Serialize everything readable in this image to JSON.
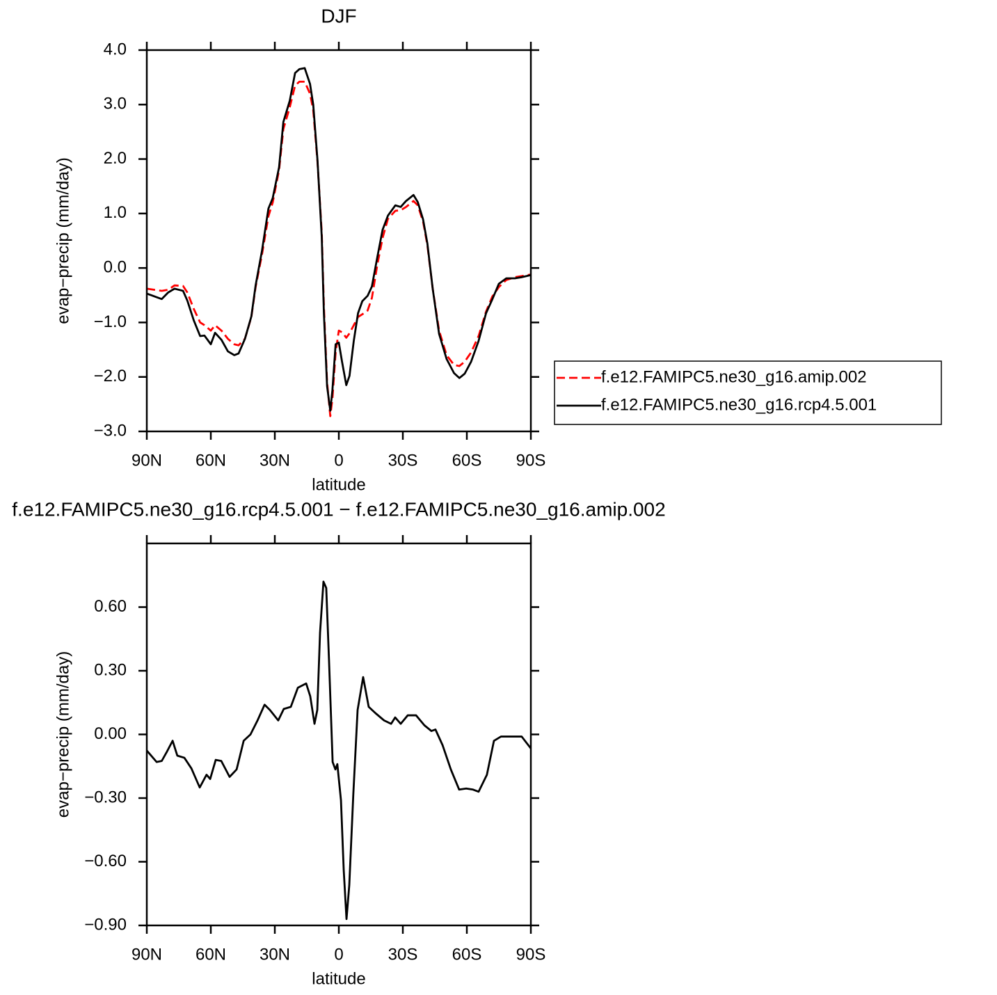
{
  "chart_data": [
    {
      "type": "line",
      "title": "DJF",
      "xlabel": "latitude",
      "ylabel": "evap−precip (mm/day)",
      "xlim": [
        90,
        -90
      ],
      "ylim": [
        -3,
        4
      ],
      "xticks": [
        {
          "value": 90,
          "label": "90N"
        },
        {
          "value": 60,
          "label": "60N"
        },
        {
          "value": 30,
          "label": "30N"
        },
        0,
        {
          "value": -30,
          "label": "30S"
        },
        {
          "value": -60,
          "label": "60S"
        },
        {
          "value": -90,
          "label": "90S"
        }
      ],
      "yticks": [
        {
          "value": 4,
          "label": "4.0"
        },
        {
          "value": 3,
          "label": "3.0"
        },
        {
          "value": 2,
          "label": "2.0"
        },
        {
          "value": 1,
          "label": "1.0"
        },
        {
          "value": 0,
          "label": "0.0"
        },
        {
          "value": -1,
          "label": "−1.0"
        },
        {
          "value": -2,
          "label": "−2.0"
        },
        {
          "value": -3,
          "label": "−3.0"
        }
      ],
      "legend": "right",
      "x": [
        90,
        83,
        80,
        77,
        73,
        71,
        68,
        65,
        63,
        60,
        58,
        55,
        52,
        49,
        47,
        44,
        41,
        39,
        36,
        33,
        31,
        28,
        26,
        23,
        20.5,
        18.5,
        16,
        13.5,
        12,
        10,
        8,
        7,
        5.5,
        4,
        3,
        1.5,
        0,
        -1.5,
        -3.5,
        -5,
        -7,
        -9,
        -11,
        -13.5,
        -15.5,
        -18,
        -20.5,
        -23,
        -26.5,
        -29,
        -31.5,
        -35,
        -37,
        -39.5,
        -41.5,
        -44,
        -47,
        -50.5,
        -54,
        -56.5,
        -59,
        -62,
        -65.5,
        -69,
        -72,
        -75,
        -78.5,
        -82.5,
        -85.5,
        -90
      ],
      "series": [
        {
          "name": "f.e12.FAMIPC5.ne30_g16.amip.002",
          "color": "#ff0000",
          "style": "dashed",
          "values": [
            -0.38,
            -0.42,
            -0.4,
            -0.32,
            -0.33,
            -0.45,
            -0.75,
            -1.0,
            -1.05,
            -1.15,
            -1.05,
            -1.15,
            -1.3,
            -1.4,
            -1.42,
            -1.3,
            -0.9,
            -0.35,
            0.25,
            0.95,
            1.2,
            1.8,
            2.55,
            2.95,
            3.35,
            3.42,
            3.42,
            3.2,
            2.9,
            1.95,
            0.65,
            -0.7,
            -2.1,
            -2.72,
            -2.4,
            -1.55,
            -1.15,
            -1.18,
            -1.28,
            -1.2,
            -1.05,
            -0.9,
            -0.85,
            -0.78,
            -0.55,
            0.05,
            0.55,
            0.9,
            1.05,
            1.06,
            1.12,
            1.23,
            1.15,
            0.85,
            0.42,
            -0.38,
            -1.15,
            -1.6,
            -1.78,
            -1.8,
            -1.72,
            -1.55,
            -1.25,
            -0.8,
            -0.52,
            -0.35,
            -0.22,
            -0.17,
            -0.15,
            -0.12
          ]
        },
        {
          "name": "f.e12.FAMIPC5.ne30_g16.rcp4.5.001",
          "color": "#000000",
          "style": "solid",
          "values": [
            -0.47,
            -0.57,
            -0.45,
            -0.38,
            -0.42,
            -0.6,
            -0.96,
            -1.25,
            -1.24,
            -1.4,
            -1.19,
            -1.32,
            -1.53,
            -1.6,
            -1.57,
            -1.3,
            -0.89,
            -0.32,
            0.32,
            1.09,
            1.28,
            1.85,
            2.68,
            3.07,
            3.58,
            3.65,
            3.67,
            3.38,
            3.0,
            1.98,
            0.57,
            -0.83,
            -2.17,
            -2.62,
            -2.24,
            -1.4,
            -1.37,
            -1.72,
            -2.15,
            -1.98,
            -1.34,
            -0.83,
            -0.61,
            -0.51,
            -0.34,
            0.19,
            0.7,
            0.96,
            1.15,
            1.12,
            1.23,
            1.34,
            1.21,
            0.89,
            0.45,
            -0.38,
            -1.21,
            -1.67,
            -1.93,
            -2.02,
            -1.94,
            -1.72,
            -1.34,
            -0.83,
            -0.57,
            -0.29,
            -0.19,
            -0.19,
            -0.17,
            -0.13
          ]
        }
      ]
    },
    {
      "type": "line",
      "title": "f.e12.FAMIPC5.ne30_g16.rcp4.5.001 − f.e12.FAMIPC5.ne30_g16.amip.002",
      "xlabel": "latitude",
      "ylabel": "evap−precip (mm/day)",
      "xlim": [
        90,
        -90
      ],
      "ylim": [
        -0.9,
        0.9
      ],
      "xticks": [
        {
          "value": 90,
          "label": "90N"
        },
        {
          "value": 60,
          "label": "60N"
        },
        {
          "value": 30,
          "label": "30N"
        },
        0,
        {
          "value": -30,
          "label": "30S"
        },
        {
          "value": -60,
          "label": "60S"
        },
        {
          "value": -90,
          "label": "90S"
        }
      ],
      "yticks": [
        {
          "value": 0.6,
          "label": "0.60"
        },
        {
          "value": 0.3,
          "label": "0.30"
        },
        {
          "value": 0,
          "label": "0.00"
        },
        {
          "value": -0.3,
          "label": "−0.30"
        },
        {
          "value": -0.6,
          "label": "−0.60"
        },
        {
          "value": -0.9,
          "label": "−0.90"
        }
      ],
      "x": [
        90,
        85.4,
        83,
        80.5,
        77.9,
        75.7,
        72.4,
        69.1,
        65.2,
        62,
        60.3,
        57.7,
        55.1,
        51.2,
        47.9,
        44.6,
        41.4,
        38.1,
        34.8,
        32.3,
        28.4,
        25.8,
        22.5,
        19.2,
        15.3,
        13.4,
        11.4,
        10.1,
        8.8,
        7.2,
        5.9,
        4.6,
        2.9,
        1.6,
        0.7,
        -1,
        -2.3,
        -3.6,
        -4.9,
        -6.8,
        -8.8,
        -11.4,
        -14,
        -17.2,
        -21.2,
        -24.5,
        -26.4,
        -29,
        -32.3,
        -36.2,
        -40.1,
        -43.4,
        -45.3,
        -48.6,
        -52.5,
        -56.4,
        -59.7,
        -62.9,
        -65.5,
        -69.4,
        -72.7,
        -76,
        -80.8,
        -85.7,
        -90
      ],
      "series": [
        {
          "color": "#000000",
          "style": "solid",
          "values": [
            -0.076,
            -0.13,
            -0.125,
            -0.08,
            -0.03,
            -0.1,
            -0.11,
            -0.16,
            -0.25,
            -0.19,
            -0.21,
            -0.12,
            -0.125,
            -0.2,
            -0.165,
            -0.03,
            0.0,
            0.066,
            0.14,
            0.115,
            0.066,
            0.12,
            0.13,
            0.22,
            0.24,
            0.18,
            0.05,
            0.115,
            0.48,
            0.72,
            0.69,
            0.35,
            -0.13,
            -0.165,
            -0.14,
            -0.31,
            -0.64,
            -0.87,
            -0.71,
            -0.28,
            0.115,
            0.27,
            0.13,
            0.1,
            0.066,
            0.05,
            0.08,
            0.05,
            0.09,
            0.09,
            0.043,
            0.016,
            0.023,
            -0.05,
            -0.165,
            -0.26,
            -0.255,
            -0.26,
            -0.27,
            -0.19,
            -0.03,
            -0.01,
            -0.01,
            -0.01,
            -0.066
          ]
        }
      ]
    }
  ]
}
